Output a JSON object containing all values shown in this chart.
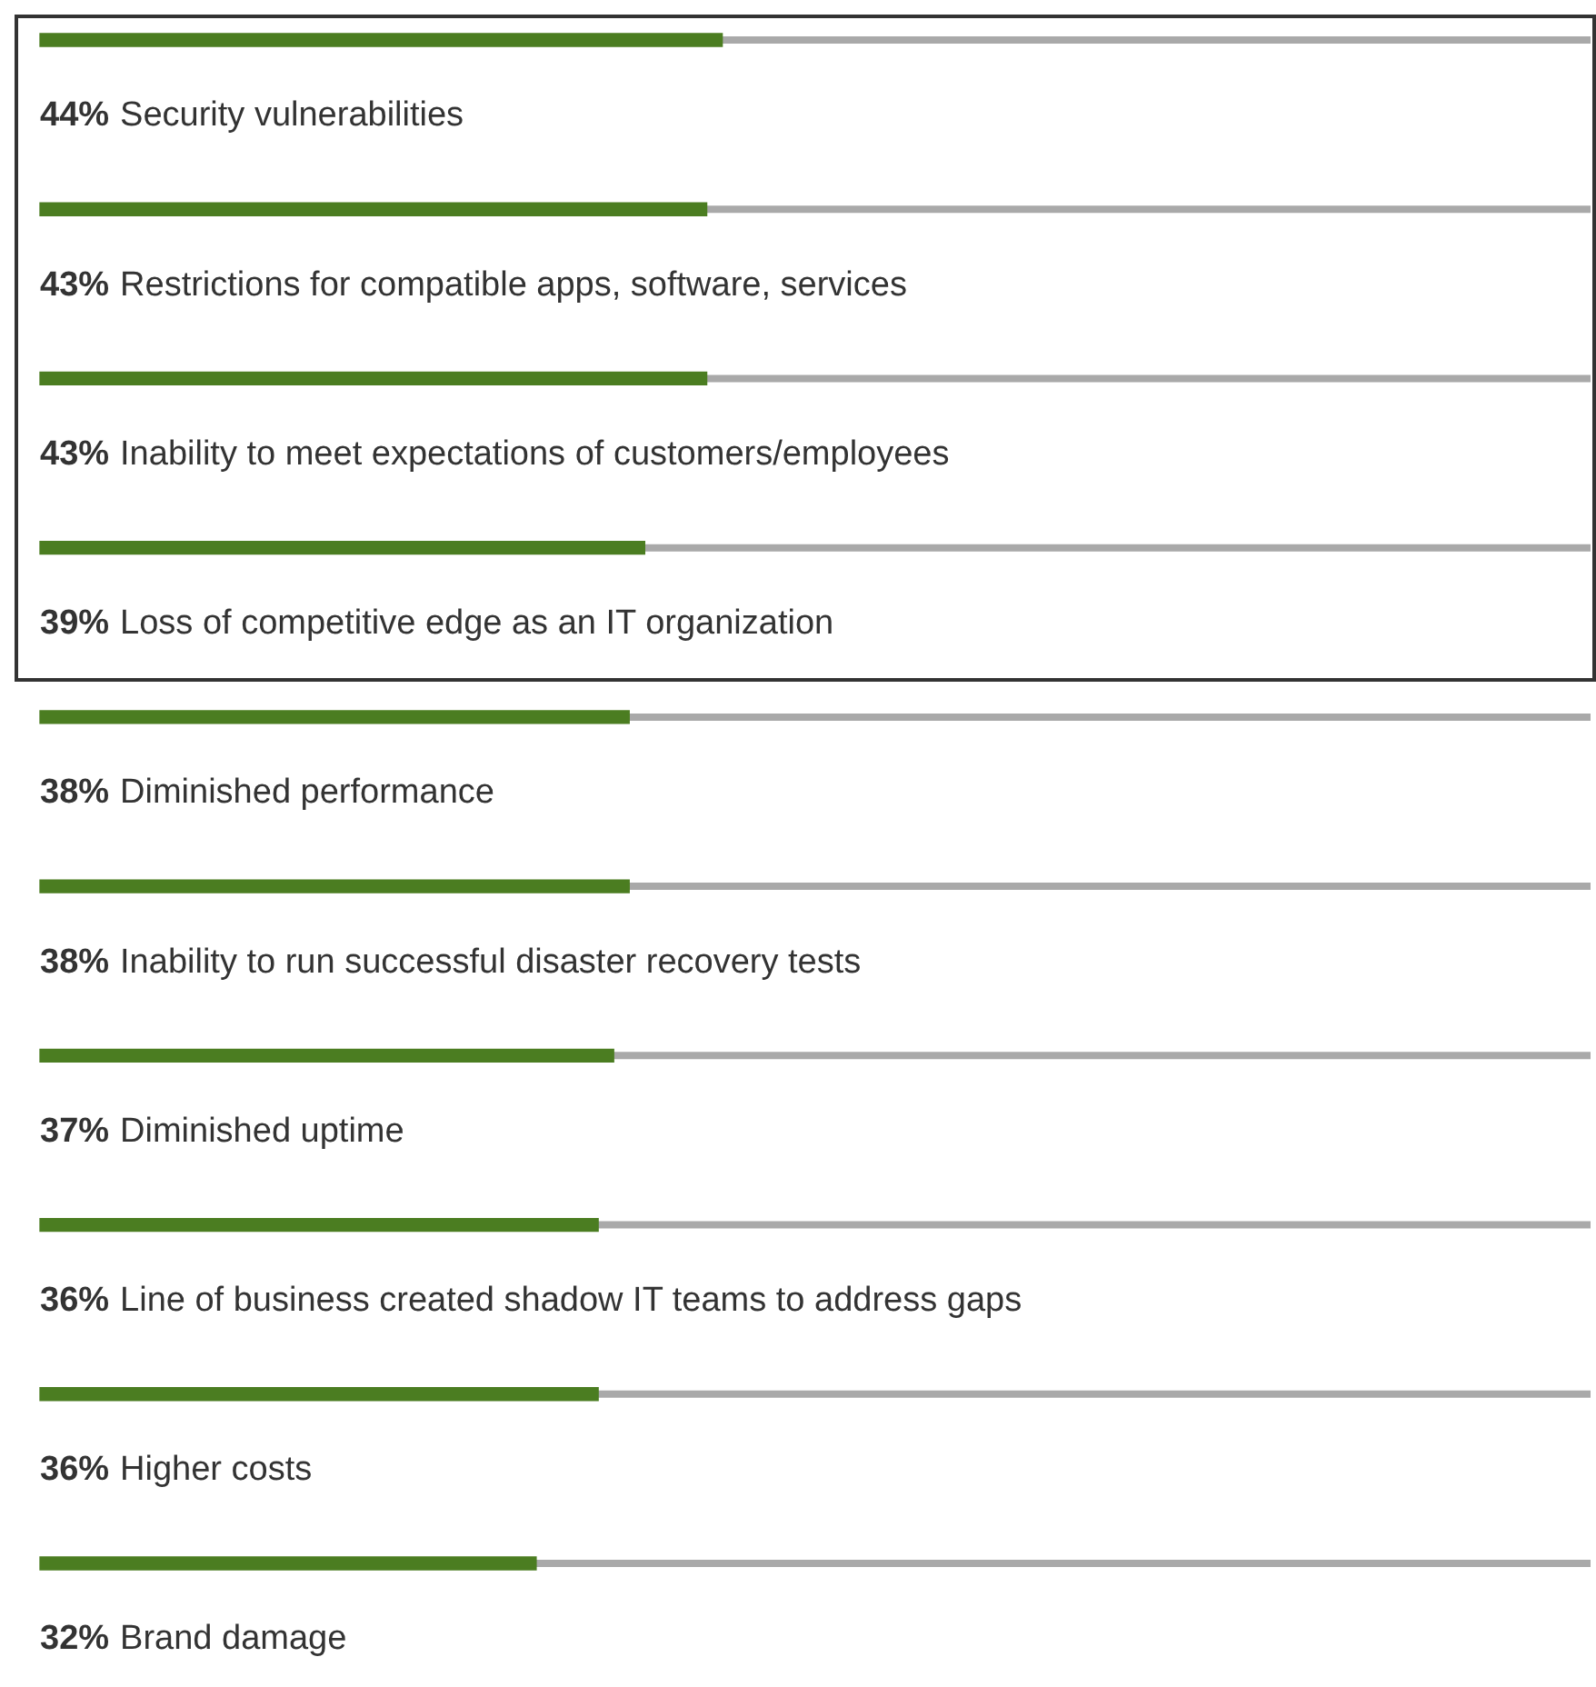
{
  "chart_data": {
    "type": "bar",
    "orientation": "horizontal",
    "categories": [
      "Security vulnerabilities",
      "Restrictions for compatible apps, software, services",
      "Inability to meet expectations of customers/employees",
      "Loss of competitive edge as an IT organization",
      "Diminished performance",
      "Inability to run successful disaster recovery tests",
      "Diminished uptime",
      "Line of business created shadow IT teams to address gaps",
      "Higher costs",
      "Brand damage"
    ],
    "values": [
      44,
      43,
      43,
      39,
      38,
      38,
      37,
      36,
      36,
      32
    ],
    "value_labels": [
      "44%",
      "43%",
      "43%",
      "39%",
      "38%",
      "38%",
      "37%",
      "36%",
      "36%",
      "32%"
    ],
    "color": "#4b7d21",
    "xlim": [
      0,
      100
    ],
    "tick_labels": false,
    "grid": false,
    "legend": false
  }
}
